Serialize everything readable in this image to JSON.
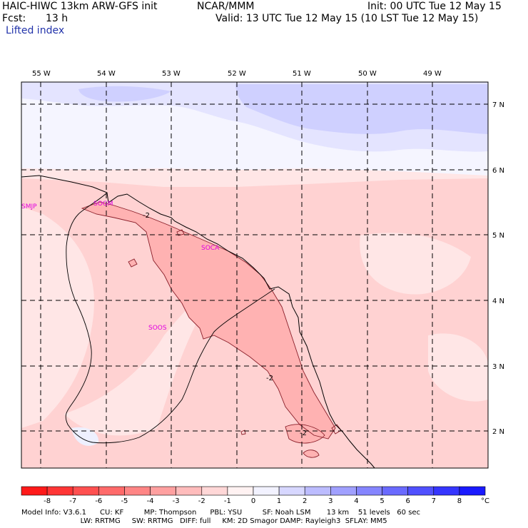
{
  "header": {
    "model": "HAIC-HIWC 13km ARW-GFS init",
    "org": "NCAR/MMM",
    "init": "Init: 00 UTC Tue 12 May 15",
    "fcst_label": "Fcst:",
    "fcst_value": "13 h",
    "valid": "Valid: 13 UTC Tue 12 May 15 (10 LST Tue 12 May 15)",
    "field": "Lifted index"
  },
  "map": {
    "lon_labels": [
      "55 W",
      "54 W",
      "53 W",
      "52 W",
      "51 W",
      "50 W",
      "49 W"
    ],
    "lat_labels": [
      "7 N",
      "6 N",
      "5 N",
      "4 N",
      "3 N",
      "2 N"
    ],
    "stations": [
      "SMJP",
      "SOGM",
      "SOCA",
      "SOOS"
    ],
    "contour_labels": [
      "-2",
      "-2",
      "-2"
    ]
  },
  "colorbar": {
    "labels": [
      "-8",
      "-7",
      "-6",
      "-5",
      "-4",
      "-3",
      "-2",
      "-1",
      "0",
      "1",
      "2",
      "3",
      "4",
      "5",
      "6",
      "7",
      "8"
    ],
    "unit": "°C",
    "colors": [
      "#ff1a1a",
      "#ff3535",
      "#ff5050",
      "#ff6a6a",
      "#ff8585",
      "#ffa0a0",
      "#ffbcbc",
      "#ffd7d7",
      "#fff2f2",
      "#f2f2ff",
      "#d7d7ff",
      "#bcbcff",
      "#a0a0ff",
      "#8585ff",
      "#6a6aff",
      "#5050ff",
      "#3535ff",
      "#1a1aff"
    ]
  },
  "footer": {
    "line1": "Model Info: V3.6.1      CU: KF         MP: Thompson      PBL: YSU         SF: Noah LSM       13 km    51 levels   60 sec",
    "line2": "                          LW: RRTMG     SW: RRTMG   DIFF: full     KM: 2D Smagor DAMP: Rayleigh3  SFLAY: MM5"
  }
}
